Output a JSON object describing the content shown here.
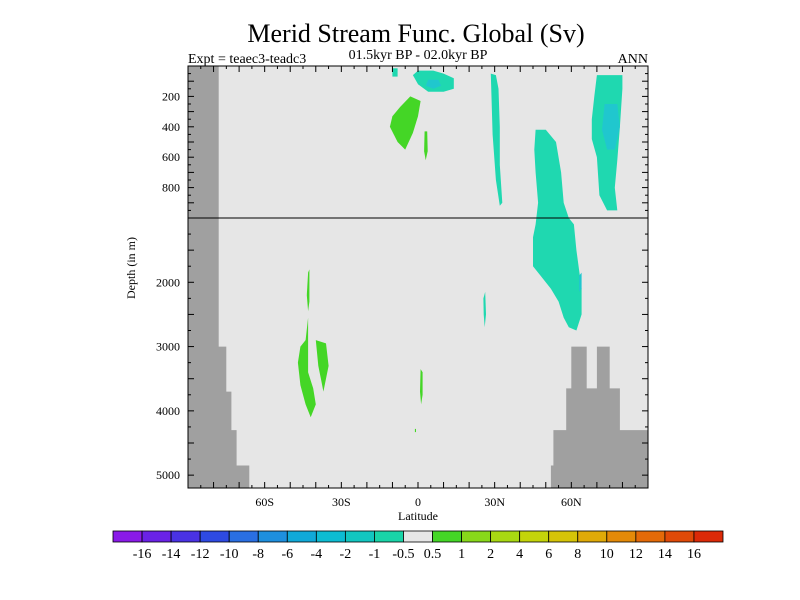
{
  "chart_data": {
    "type": "heatmap",
    "title": "Merid Stream Func. Global (Sv)",
    "subtitle_left": "Expt = teaec3-teadc3",
    "subtitle_center": "01.5kyr BP - 02.0kyr BP",
    "subtitle_right": "ANN",
    "xlabel": "Latitude",
    "ylabel": "Depth (in m)",
    "x_ticks": [
      {
        "value": -60,
        "label": "60S"
      },
      {
        "value": -30,
        "label": "30S"
      },
      {
        "value": 0,
        "label": "0"
      },
      {
        "value": 30,
        "label": "30N"
      },
      {
        "value": 60,
        "label": "60N"
      }
    ],
    "y_ticks_upper": [
      {
        "value": 200,
        "label": "200"
      },
      {
        "value": 400,
        "label": "400"
      },
      {
        "value": 600,
        "label": "600"
      },
      {
        "value": 800,
        "label": "800"
      }
    ],
    "y_ticks_lower": [
      {
        "value": 2000,
        "label": "2000"
      },
      {
        "value": 3000,
        "label": "3000"
      },
      {
        "value": 4000,
        "label": "4000"
      },
      {
        "value": 5000,
        "label": "5000"
      }
    ],
    "xlim": [
      -90,
      90
    ],
    "ylim_upper": [
      0,
      1000
    ],
    "ylim_lower": [
      1000,
      5200
    ],
    "background_color": "#e6e6e6",
    "land_color": "#a0a0a0",
    "colorbar": {
      "colors": [
        "#8a1ae8",
        "#6a22e6",
        "#4a32e4",
        "#2e4ae2",
        "#2a6fe2",
        "#1e8fde",
        "#10a9d8",
        "#0dbcd2",
        "#12c6c0",
        "#19d4a8",
        "#e6e6e6",
        "#44d626",
        "#88d81a",
        "#a8d812",
        "#c4d40a",
        "#d6c408",
        "#e0aa08",
        "#e48a08",
        "#e46a08",
        "#e04a08",
        "#dc2a08"
      ],
      "labels": [
        "-16",
        "-14",
        "-12",
        "-10",
        "-8",
        "-6",
        "-4",
        "-2",
        "-1",
        "-0.5",
        "0.5",
        "1",
        "2",
        "4",
        "6",
        "8",
        "10",
        "12",
        "14",
        "16"
      ]
    },
    "regions": [
      {
        "level": 1,
        "color": "#44d626",
        "points": [
          [
            -7,
            270
          ],
          [
            -3,
            200
          ],
          [
            1,
            230
          ],
          [
            0,
            330
          ],
          [
            -2,
            440
          ],
          [
            -5,
            550
          ],
          [
            -8,
            500
          ],
          [
            -11,
            400
          ],
          [
            -10,
            330
          ]
        ]
      },
      {
        "level": 1,
        "color": "#44d626",
        "points": [
          [
            2.6,
            430
          ],
          [
            3.6,
            430
          ],
          [
            3.8,
            560
          ],
          [
            3.0,
            620
          ],
          [
            2.4,
            560
          ]
        ]
      },
      {
        "level": -1,
        "color": "#1fd8b0",
        "points": [
          [
            0,
            30
          ],
          [
            6,
            30
          ],
          [
            10,
            50
          ],
          [
            14,
            80
          ],
          [
            14,
            150
          ],
          [
            10,
            170
          ],
          [
            4,
            170
          ],
          [
            0,
            120
          ],
          [
            -2,
            60
          ]
        ]
      },
      {
        "level": -2,
        "color": "#20c7ce",
        "points": [
          [
            4,
            90
          ],
          [
            8,
            90
          ],
          [
            9,
            130
          ],
          [
            6,
            150
          ],
          [
            3,
            130
          ]
        ]
      },
      {
        "level": -1,
        "color": "#1fd8b0",
        "points": [
          [
            -10,
            15
          ],
          [
            -8,
            15
          ],
          [
            -8,
            70
          ],
          [
            -10,
            70
          ]
        ]
      },
      {
        "level": -1,
        "color": "#1fd8b0",
        "points": [
          [
            28.5,
            50
          ],
          [
            30.5,
            60
          ],
          [
            31.5,
            150
          ],
          [
            32,
            400
          ],
          [
            32,
            650
          ],
          [
            33,
            900
          ],
          [
            32,
            920
          ],
          [
            30.5,
            750
          ],
          [
            29.2,
            450
          ]
        ]
      },
      {
        "level": -1,
        "color": "#1fd8b0",
        "points": [
          [
            46,
            420
          ],
          [
            50,
            420
          ],
          [
            54,
            500
          ],
          [
            56,
            700
          ],
          [
            57,
            900
          ],
          [
            59,
            1000
          ],
          [
            61,
            1100
          ],
          [
            62,
            1500
          ],
          [
            63,
            1800
          ],
          [
            64,
            2100
          ],
          [
            64,
            2500
          ],
          [
            62,
            2750
          ],
          [
            59,
            2700
          ],
          [
            57,
            2550
          ],
          [
            55,
            2300
          ],
          [
            52,
            2100
          ],
          [
            48,
            1900
          ],
          [
            45,
            1750
          ],
          [
            45,
            1300
          ],
          [
            46,
            1100
          ],
          [
            47,
            900
          ],
          [
            46,
            700
          ],
          [
            45.5,
            550
          ]
        ]
      },
      {
        "level": -2,
        "color": "#20c7ce",
        "points": [
          [
            63,
            1900
          ],
          [
            64,
            1850
          ],
          [
            64,
            2100
          ],
          [
            63,
            2150
          ]
        ]
      },
      {
        "level": -1,
        "color": "#1fd8b0",
        "points": [
          [
            70,
            60
          ],
          [
            80,
            60
          ],
          [
            80,
            150
          ],
          [
            79,
            400
          ],
          [
            78,
            620
          ],
          [
            77,
            800
          ],
          [
            78,
            950
          ],
          [
            74,
            950
          ],
          [
            71,
            850
          ],
          [
            70,
            600
          ],
          [
            68,
            480
          ],
          [
            68,
            350
          ],
          [
            69,
            200
          ]
        ]
      },
      {
        "level": -2,
        "color": "#20c7ce",
        "points": [
          [
            73,
            250
          ],
          [
            78,
            250
          ],
          [
            79,
            400
          ],
          [
            77,
            550
          ],
          [
            74,
            550
          ],
          [
            72,
            420
          ]
        ]
      },
      {
        "level": -1,
        "color": "#1fd8b0",
        "points": [
          [
            25.6,
            2250
          ],
          [
            26.3,
            2150
          ],
          [
            26.6,
            2500
          ],
          [
            26.1,
            2700
          ],
          [
            25.7,
            2500
          ]
        ]
      },
      {
        "level": 1,
        "color": "#44d626",
        "points": [
          [
            -44,
            2900
          ],
          [
            -43,
            2550
          ],
          [
            -43,
            3400
          ],
          [
            -41,
            3650
          ],
          [
            -40,
            3900
          ],
          [
            -42,
            4100
          ],
          [
            -44,
            3900
          ],
          [
            -46,
            3600
          ],
          [
            -47,
            3250
          ],
          [
            -46,
            3000
          ]
        ]
      },
      {
        "level": 1,
        "color": "#44d626",
        "points": [
          [
            -43,
            1850
          ],
          [
            -42.5,
            1800
          ],
          [
            -42.5,
            2300
          ],
          [
            -43,
            2450
          ],
          [
            -43.5,
            2200
          ]
        ]
      },
      {
        "level": 1,
        "color": "#44d626",
        "points": [
          [
            -40,
            2900
          ],
          [
            -36,
            2950
          ],
          [
            -35,
            3300
          ],
          [
            -37,
            3700
          ],
          [
            -38,
            3500
          ],
          [
            -39,
            3300
          ]
        ]
      },
      {
        "level": 1,
        "color": "#44d626",
        "points": [
          [
            1,
            3350
          ],
          [
            1.8,
            3400
          ],
          [
            1.8,
            3750
          ],
          [
            1.2,
            3900
          ],
          [
            0.8,
            3700
          ]
        ]
      },
      {
        "level": 1,
        "color": "#44d626",
        "points": [
          [
            -1.2,
            4280
          ],
          [
            -0.8,
            4280
          ],
          [
            -0.8,
            4330
          ],
          [
            -1.2,
            4330
          ]
        ]
      }
    ],
    "land": [
      {
        "points": [
          [
            -90,
            0
          ],
          [
            -78,
            0
          ],
          [
            -78,
            1000
          ],
          [
            -90,
            1000
          ]
        ]
      },
      {
        "points": [
          [
            -90,
            1000
          ],
          [
            -78,
            1000
          ],
          [
            -78,
            3000
          ],
          [
            -75,
            3000
          ],
          [
            -75,
            3700
          ],
          [
            -73,
            3700
          ],
          [
            -73,
            4300
          ],
          [
            -71,
            4300
          ],
          [
            -71,
            4850
          ],
          [
            -66,
            4850
          ],
          [
            -66,
            5200
          ],
          [
            -90,
            5200
          ]
        ]
      },
      {
        "points": [
          [
            52,
            5200
          ],
          [
            52,
            4850
          ],
          [
            53,
            4850
          ],
          [
            53,
            4300
          ],
          [
            58,
            4300
          ],
          [
            58,
            3650
          ],
          [
            60,
            3650
          ],
          [
            60,
            3000
          ],
          [
            66,
            3000
          ],
          [
            66,
            3650
          ],
          [
            70,
            3650
          ],
          [
            70,
            3000
          ],
          [
            75,
            3000
          ],
          [
            75,
            3650
          ],
          [
            79,
            3650
          ],
          [
            79,
            4300
          ],
          [
            90,
            4300
          ],
          [
            90,
            5200
          ]
        ]
      }
    ]
  }
}
